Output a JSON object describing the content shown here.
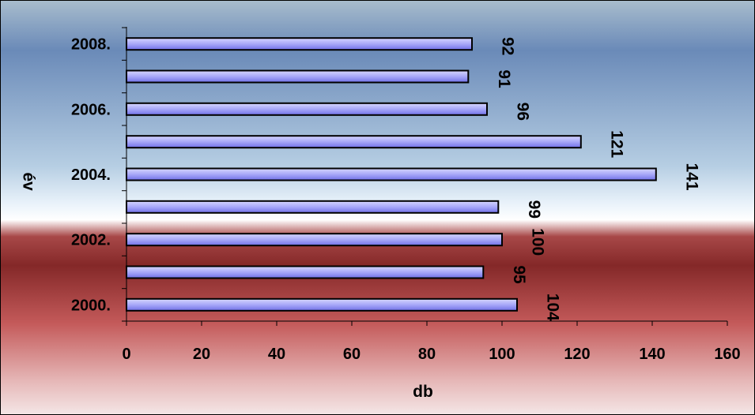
{
  "chart_data": {
    "type": "bar",
    "orientation": "horizontal",
    "categories": [
      "2000.",
      "",
      "2002.",
      "",
      "2004.",
      "",
      "2006.",
      "",
      "2008."
    ],
    "values": [
      104,
      95,
      100,
      99,
      141,
      121,
      96,
      91,
      92
    ],
    "data_labels": [
      "104",
      "95",
      "100",
      "99",
      "141",
      "121",
      "96",
      "91",
      "92"
    ],
    "xlabel": "db",
    "ylabel": "év",
    "xlim": [
      0,
      160
    ],
    "x_ticks": [
      0,
      20,
      40,
      60,
      80,
      100,
      120,
      140,
      160
    ],
    "x_tick_labels": [
      "0",
      "20",
      "40",
      "60",
      "80",
      "100",
      "120",
      "140",
      "160"
    ],
    "grid": false,
    "legend": "none",
    "colors": {
      "bar_fill_light": "#ccccff",
      "bar_fill_dark": "#7777ee",
      "bar_stroke": "#000000",
      "background_top": "#6688b8",
      "background_middle": "#ffffff",
      "background_band": "#8a2a2a",
      "background_bottom": "#f0e0e0"
    }
  }
}
